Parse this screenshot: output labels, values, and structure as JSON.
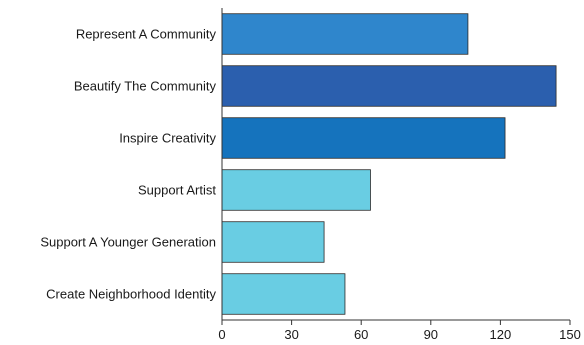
{
  "chart_data": {
    "type": "bar",
    "orientation": "horizontal",
    "title": "",
    "xlabel": "",
    "ylabel": "",
    "categories": [
      "Represent A Community",
      "Beautify The Community",
      "Inspire Creativity",
      "Support Artist",
      "Support A Younger Generation",
      "Create Neighborhood Identity"
    ],
    "values": [
      106,
      144,
      122,
      64,
      44,
      53
    ],
    "bar_colors": [
      "#2f86cc",
      "#2b5fae",
      "#1573bd",
      "#69cde3",
      "#69cde3",
      "#69cde3"
    ],
    "xlim": [
      0,
      150
    ],
    "xticks": [
      "0",
      "30",
      "60",
      "90",
      "120",
      "150"
    ],
    "grid": false,
    "legend": "none"
  }
}
